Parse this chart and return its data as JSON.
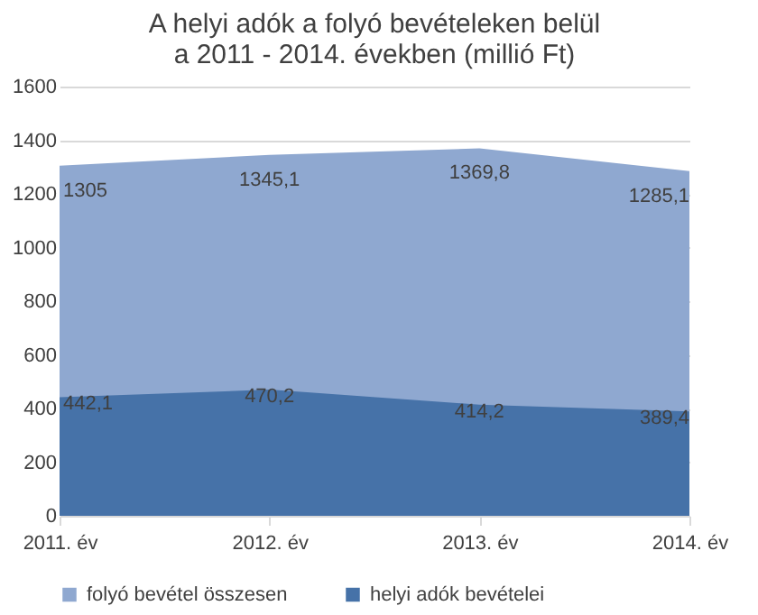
{
  "chart_data": {
    "type": "area",
    "title": "A helyi adók a folyó bevételeken belül\na 2011 - 2014. években (millió Ft)",
    "categories": [
      "2011. év",
      "2012. év",
      "2013. év",
      "2014. év"
    ],
    "series": [
      {
        "name": "folyó bevétel összesen",
        "color": "#8fa8d0",
        "values": [
          1305,
          1345.1,
          1369.8,
          1285.1
        ],
        "value_labels": [
          "1305",
          "1345,1",
          "1369,8",
          "1285,1"
        ]
      },
      {
        "name": "helyi adók bevételei",
        "color": "#4672a8",
        "values": [
          442.1,
          470.2,
          414.2,
          389.4
        ],
        "value_labels": [
          "442,1",
          "470,2",
          "414,2",
          "389,4"
        ]
      }
    ],
    "ylim": [
      0,
      1600
    ],
    "yticks": [
      0,
      200,
      400,
      600,
      800,
      1000,
      1200,
      1400,
      1600
    ],
    "grid": "y",
    "legend": "bottom"
  }
}
